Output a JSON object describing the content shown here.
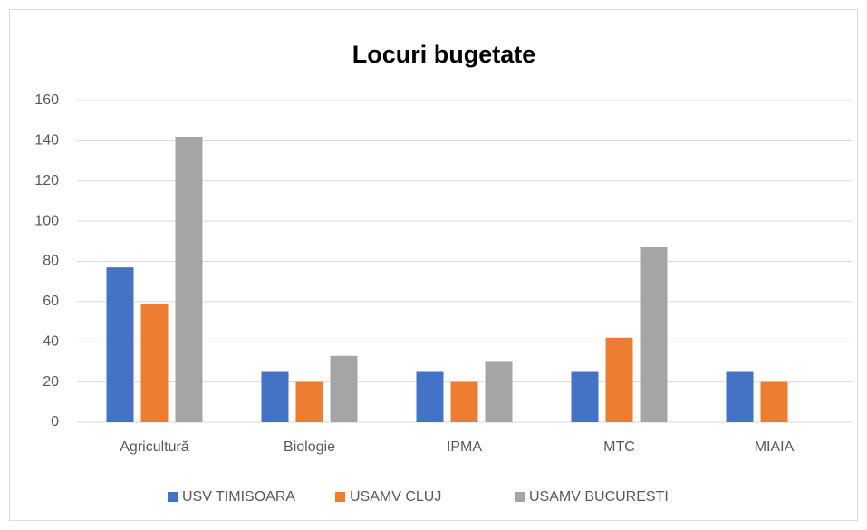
{
  "chart_data": {
    "type": "bar",
    "title": "Locuri bugetate",
    "categories": [
      "Agricultură",
      "Biologie",
      "IPMA",
      "MTC",
      "MIAIA"
    ],
    "series": [
      {
        "name": "USV TIMISOARA",
        "color": "#4472c4",
        "values": [
          77,
          25,
          25,
          25,
          25
        ]
      },
      {
        "name": "USAMV CLUJ",
        "color": "#ed7d31",
        "values": [
          59,
          20,
          20,
          42,
          20
        ]
      },
      {
        "name": "USAMV BUCURESTI",
        "color": "#a5a5a5",
        "values": [
          142,
          33,
          30,
          87,
          null
        ]
      }
    ],
    "ylim": [
      0,
      160
    ],
    "yticks": [
      0,
      20,
      40,
      60,
      80,
      100,
      120,
      140,
      160
    ],
    "grid": true,
    "legend": "bottom"
  }
}
